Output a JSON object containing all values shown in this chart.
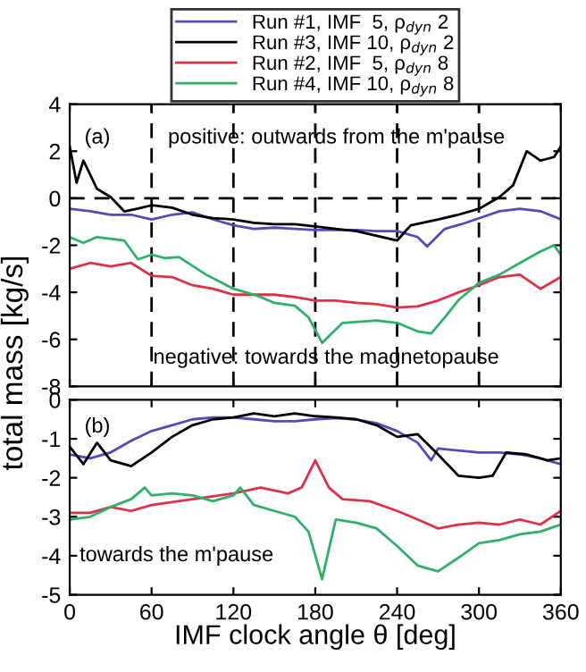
{
  "chart_data": [
    {
      "type": "line",
      "ylabel": "total mass [kg/s]",
      "xlim": [
        0,
        360
      ],
      "xticks": [
        {
          "value": 0,
          "label": null
        },
        {
          "value": 60,
          "label": null
        },
        {
          "value": 120,
          "label": null
        },
        {
          "value": 180,
          "label": null
        },
        {
          "value": 240,
          "label": null
        },
        {
          "value": 300,
          "label": null
        },
        {
          "value": 360,
          "label": null
        }
      ],
      "ylim": [
        -8,
        4
      ],
      "yticks": [
        -8,
        -6,
        -4,
        -2,
        0,
        2,
        4
      ],
      "tick_labels": "y",
      "grid": false,
      "legend": "top",
      "line_style": "solid",
      "marker": "none",
      "annotations": [
        "(a)",
        "positive: outwards from the m'pause",
        "negative: towards the magnetopause"
      ],
      "ref_lines": [
        {
          "axis": "x",
          "value": 60,
          "color": "#000000",
          "line_style": "dashed"
        },
        {
          "axis": "x",
          "value": 120,
          "color": "#000000",
          "line_style": "dashed"
        },
        {
          "axis": "x",
          "value": 180,
          "color": "#000000",
          "line_style": "dashed"
        },
        {
          "axis": "x",
          "value": 240,
          "color": "#000000",
          "line_style": "dashed"
        },
        {
          "axis": "x",
          "value": 300,
          "color": "#000000",
          "line_style": "dashed"
        },
        {
          "axis": "y",
          "value": 0,
          "color": "#000000",
          "line_style": "dashed"
        }
      ],
      "series": [
        {
          "name": "Run #1, IMF  5, ρ$_{dyn}$ 2",
          "color": "#5a48b8",
          "x": [
            0,
            15,
            30,
            45,
            60,
            75,
            90,
            105,
            120,
            135,
            150,
            165,
            180,
            195,
            210,
            225,
            240,
            255,
            262,
            275,
            290,
            300,
            315,
            330,
            345,
            360
          ],
          "values": [
            -0.45,
            -0.55,
            -0.7,
            -0.7,
            -0.9,
            -0.7,
            -0.6,
            -0.9,
            -1.15,
            -1.3,
            -1.25,
            -1.3,
            -1.35,
            -1.35,
            -1.35,
            -1.4,
            -1.4,
            -1.65,
            -2.05,
            -1.3,
            -1.05,
            -0.85,
            -0.55,
            -0.45,
            -0.55,
            -0.9
          ]
        },
        {
          "name": "Run #3, IMF 10, ρ$_{dyn}$ 2",
          "color": "#000000",
          "x": [
            0,
            5,
            10,
            20,
            30,
            40,
            50,
            60,
            75,
            90,
            105,
            120,
            135,
            150,
            165,
            180,
            195,
            210,
            225,
            240,
            250,
            270,
            285,
            300,
            315,
            325,
            335,
            345,
            355,
            360
          ],
          "values": [
            2.2,
            0.66,
            1.6,
            0.4,
            0.05,
            -0.56,
            -0.44,
            -0.3,
            -0.4,
            -0.7,
            -0.85,
            -0.9,
            -1.05,
            -1.1,
            -1.1,
            -1.2,
            -1.3,
            -1.4,
            -1.6,
            -1.8,
            -1.15,
            -0.9,
            -0.7,
            -0.45,
            0.05,
            0.55,
            2.0,
            1.6,
            1.75,
            2.2
          ]
        },
        {
          "name": "Run #2, IMF  5, ρ$_{dyn}$ 8",
          "color": "#e03048",
          "x": [
            0,
            15,
            30,
            45,
            60,
            75,
            90,
            105,
            120,
            135,
            150,
            165,
            180,
            195,
            210,
            225,
            240,
            255,
            270,
            285,
            300,
            315,
            330,
            345,
            360
          ],
          "values": [
            -3.0,
            -2.75,
            -2.9,
            -2.75,
            -3.3,
            -3.35,
            -3.7,
            -3.85,
            -4.1,
            -4.1,
            -4.1,
            -4.2,
            -4.35,
            -4.35,
            -4.45,
            -4.5,
            -4.65,
            -4.6,
            -4.35,
            -4.0,
            -3.7,
            -3.35,
            -3.25,
            -3.85,
            -3.35
          ]
        },
        {
          "name": "Run #4, IMF 10, ρ$_{dyn}$ 8",
          "color": "#2eb06a",
          "x": [
            0,
            10,
            20,
            40,
            50,
            60,
            70,
            80,
            100,
            120,
            135,
            140,
            150,
            165,
            175,
            185,
            200,
            225,
            240,
            255,
            265,
            275,
            285,
            300,
            315,
            330,
            345,
            355,
            360
          ],
          "values": [
            -1.65,
            -1.9,
            -1.65,
            -1.8,
            -2.6,
            -2.4,
            -2.55,
            -2.5,
            -3.25,
            -3.85,
            -4.1,
            -4.2,
            -4.45,
            -4.57,
            -5.06,
            -6.15,
            -5.3,
            -5.2,
            -5.3,
            -5.66,
            -5.75,
            -5.06,
            -4.33,
            -3.6,
            -3.25,
            -2.75,
            -2.27,
            -2.0,
            -2.4
          ]
        }
      ]
    },
    {
      "type": "line",
      "xlabel": "IMF clock angle θ [deg]",
      "xlim": [
        0,
        360
      ],
      "xticks": [
        0,
        60,
        120,
        180,
        240,
        300,
        360
      ],
      "ylim": [
        -5,
        0
      ],
      "yticks": [
        -5,
        -4,
        -3,
        -2,
        -1,
        0
      ],
      "grid": false,
      "line_style": "solid",
      "marker": "none",
      "annotations": [
        "(b)",
        "towards the m'pause"
      ],
      "series": [
        {
          "color": "#5a48b8",
          "x": [
            0,
            15,
            30,
            45,
            60,
            75,
            90,
            105,
            120,
            135,
            150,
            165,
            180,
            195,
            210,
            225,
            240,
            255,
            265,
            270,
            285,
            300,
            315,
            330,
            345,
            360
          ],
          "values": [
            -1.4,
            -1.5,
            -1.35,
            -1.05,
            -0.8,
            -0.65,
            -0.5,
            -0.45,
            -0.45,
            -0.5,
            -0.55,
            -0.55,
            -0.5,
            -0.47,
            -0.5,
            -0.6,
            -0.8,
            -1.1,
            -1.55,
            -1.25,
            -1.3,
            -1.35,
            -1.35,
            -1.4,
            -1.5,
            -1.65
          ]
        },
        {
          "color": "#000000",
          "x": [
            0,
            10,
            20,
            30,
            45,
            60,
            75,
            90,
            105,
            120,
            135,
            150,
            165,
            180,
            195,
            210,
            225,
            240,
            255,
            270,
            285,
            300,
            310,
            320,
            335,
            350,
            360
          ],
          "values": [
            -1.2,
            -1.65,
            -1.1,
            -1.55,
            -1.7,
            -1.35,
            -0.95,
            -0.65,
            -0.5,
            -0.45,
            -0.35,
            -0.42,
            -0.35,
            -0.42,
            -0.45,
            -0.5,
            -0.65,
            -0.95,
            -0.88,
            -1.4,
            -1.95,
            -2.0,
            -1.95,
            -1.35,
            -1.4,
            -1.55,
            -1.5
          ]
        },
        {
          "color": "#e03048",
          "x": [
            0,
            15,
            30,
            45,
            60,
            90,
            120,
            140,
            160,
            170,
            180,
            190,
            200,
            220,
            240,
            255,
            270,
            285,
            300,
            315,
            330,
            345,
            360
          ],
          "values": [
            -2.9,
            -2.9,
            -2.75,
            -2.85,
            -2.7,
            -2.55,
            -2.4,
            -2.25,
            -2.4,
            -2.25,
            -1.55,
            -2.25,
            -2.55,
            -2.6,
            -2.85,
            -3.07,
            -3.3,
            -3.2,
            -3.15,
            -3.2,
            -3.07,
            -3.2,
            -2.85
          ]
        },
        {
          "color": "#2eb06a",
          "x": [
            0,
            15,
            30,
            45,
            55,
            60,
            75,
            90,
            105,
            120,
            125,
            135,
            150,
            165,
            175,
            185,
            195,
            210,
            225,
            240,
            255,
            270,
            285,
            300,
            315,
            330,
            345,
            360
          ],
          "values": [
            -3.07,
            -3.0,
            -2.75,
            -2.55,
            -2.25,
            -2.45,
            -2.4,
            -2.45,
            -2.6,
            -2.45,
            -2.25,
            -2.7,
            -2.85,
            -3.0,
            -3.38,
            -4.6,
            -3.07,
            -3.15,
            -3.3,
            -3.75,
            -4.25,
            -4.4,
            -4.05,
            -3.68,
            -3.6,
            -3.45,
            -3.38,
            -3.2
          ]
        }
      ]
    }
  ]
}
